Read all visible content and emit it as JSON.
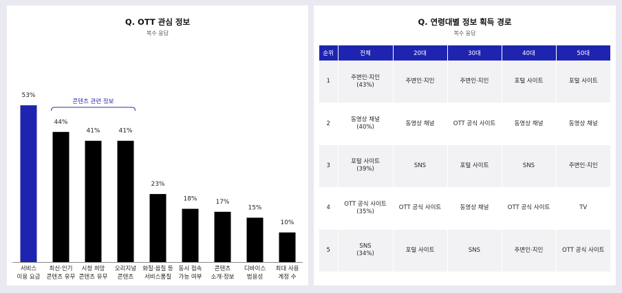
{
  "left": {
    "title": "Q. OTT 관심 정보",
    "subtitle": "복수 응답",
    "bracket_label": "콘텐츠 관련 정보"
  },
  "chart_data": {
    "type": "bar",
    "title": "Q. OTT 관심 정보",
    "subtitle": "복수 응답",
    "categories": [
      [
        "서비스",
        "이용 요금"
      ],
      [
        "최신·인기",
        "콘텐츠 유무"
      ],
      [
        "시청 희망",
        "콘텐츠 유무"
      ],
      [
        "오리지널",
        "콘텐츠"
      ],
      [
        "화질·음질 등",
        "서비스품질"
      ],
      [
        "동시 접속",
        "가능 여부"
      ],
      [
        "콘텐츠",
        "소개·정보"
      ],
      [
        "디바이스",
        "범용성"
      ],
      [
        "최대 사용",
        "계정 수"
      ]
    ],
    "values": [
      53,
      44,
      41,
      41,
      23,
      18,
      17,
      15,
      10
    ],
    "value_labels": [
      "53%",
      "44%",
      "41%",
      "41%",
      "23%",
      "18%",
      "17%",
      "15%",
      "10%"
    ],
    "highlight_index": 0,
    "colors": {
      "highlight": "#1e24b0",
      "default": "#000000",
      "bracket": "#2b31a8"
    },
    "ylim": [
      0,
      60
    ],
    "grid": false,
    "xlabel": "",
    "ylabel": ""
  },
  "right": {
    "title": "Q. 연령대별 정보 획득 경로",
    "subtitle": "복수 응답",
    "table": {
      "headers": [
        "순위",
        "전체",
        "20대",
        "30대",
        "40대",
        "50대"
      ],
      "rows": [
        {
          "rank": "1",
          "overall": [
            "주변인·지인",
            "(43%)"
          ],
          "cells": [
            "주변인·지인",
            "주변인·지인",
            "포털 사이트",
            "포털 사이트"
          ]
        },
        {
          "rank": "2",
          "overall": [
            "동영상 채널",
            "(40%)"
          ],
          "cells": [
            "동영상 채널",
            "OTT 공식 사이트",
            "동영상 채널",
            "동영상 채널"
          ]
        },
        {
          "rank": "3",
          "overall": [
            "포털 사이트",
            "(39%)"
          ],
          "cells": [
            "SNS",
            "포털 사이트",
            "SNS",
            "주변인·지인"
          ]
        },
        {
          "rank": "4",
          "overall": [
            "OTT 공식 사이트",
            "(35%)"
          ],
          "cells": [
            "OTT 공식 사이트",
            "동영상 채널",
            "OTT 공식 사이트",
            "TV"
          ]
        },
        {
          "rank": "5",
          "overall": [
            "SNS",
            "(34%)"
          ],
          "cells": [
            "포털 사이트",
            "SNS",
            "주변인·지인",
            "OTT 공식 사이트"
          ]
        }
      ]
    }
  }
}
